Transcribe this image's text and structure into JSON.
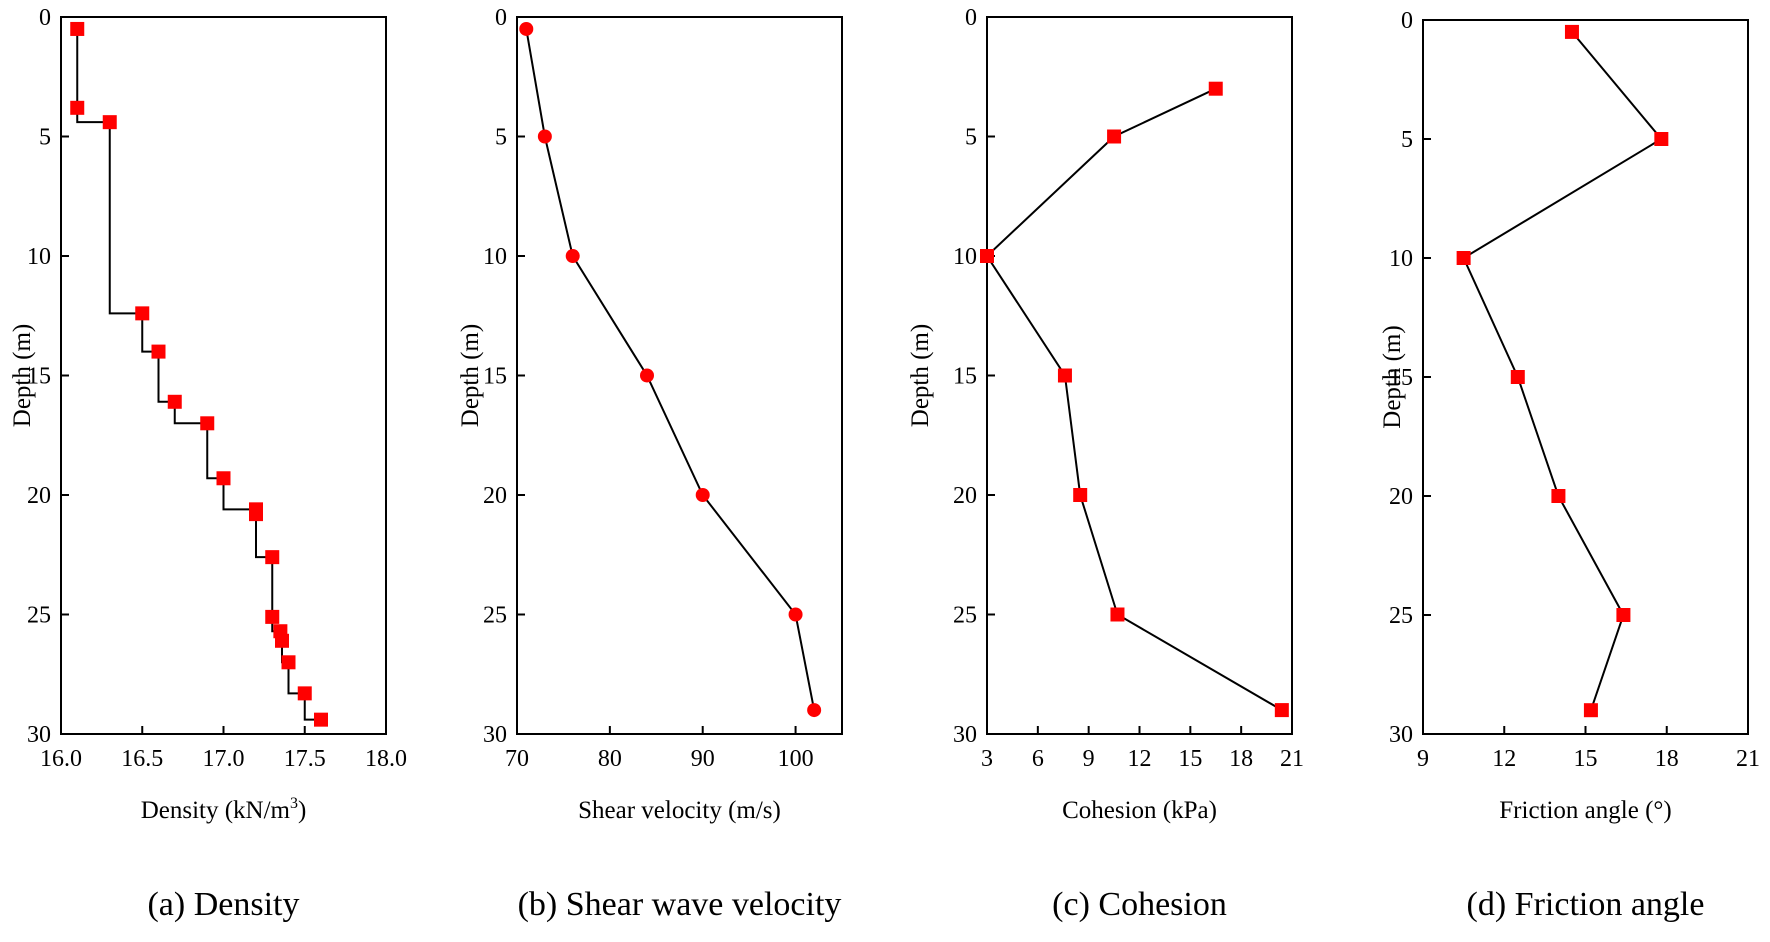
{
  "chart_data": [
    {
      "type": "line",
      "panel": "a",
      "caption": "(a) Density",
      "xlabel_main": "Density (kN/m",
      "xlabel_sup": "3",
      "xlabel_end": ")",
      "ylabel": "Depth (m)",
      "xlim": [
        16.0,
        18.0
      ],
      "ylim": [
        0,
        30
      ],
      "xticks": [
        "16.0",
        "16.5",
        "17.0",
        "17.5",
        "18.0"
      ],
      "yticks": [
        "0",
        "5",
        "10",
        "15",
        "20",
        "25",
        "30"
      ],
      "marker": "square",
      "line_style": "step",
      "series": [
        {
          "x": [
            16.1,
            16.1,
            16.3,
            16.5,
            16.6,
            16.7,
            16.9,
            17.0,
            17.2,
            17.2,
            17.3,
            17.3,
            17.35,
            17.36,
            17.4,
            17.5,
            17.6
          ],
          "y": [
            0.5,
            3.8,
            4.4,
            12.4,
            14.0,
            16.1,
            17.0,
            19.3,
            20.6,
            20.8,
            22.6,
            25.1,
            25.7,
            26.1,
            27.0,
            28.3,
            29.4
          ]
        }
      ]
    },
    {
      "type": "line",
      "panel": "b",
      "caption": "(b) Shear wave velocity",
      "xlabel_main": "Shear velocity (m/s)",
      "xlabel_sup": "",
      "xlabel_end": "",
      "ylabel": "Depth (m)",
      "xlim": [
        70,
        105
      ],
      "ylim": [
        0,
        30
      ],
      "xticks": [
        "70",
        "80",
        "90",
        "100"
      ],
      "yticks": [
        "0",
        "5",
        "10",
        "15",
        "20",
        "25",
        "30"
      ],
      "marker": "circle",
      "line_style": "straight",
      "series": [
        {
          "x": [
            71,
            73,
            76,
            84,
            90,
            100,
            102
          ],
          "y": [
            0.5,
            5,
            10,
            15,
            20,
            25,
            29
          ]
        }
      ]
    },
    {
      "type": "line",
      "panel": "c",
      "caption": "(c) Cohesion",
      "xlabel_main": "Cohesion (kPa)",
      "xlabel_sup": "",
      "xlabel_end": "",
      "ylabel": "Depth (m)",
      "xlim": [
        3,
        21
      ],
      "ylim": [
        0,
        30
      ],
      "xticks": [
        "3",
        "6",
        "9",
        "12",
        "15",
        "18",
        "21"
      ],
      "yticks": [
        "0",
        "5",
        "10",
        "15",
        "20",
        "25",
        "30"
      ],
      "marker": "square",
      "line_style": "straight",
      "series": [
        {
          "x": [
            16.5,
            10.5,
            3.0,
            7.6,
            8.5,
            10.7,
            20.4
          ],
          "y": [
            3,
            5,
            10,
            15,
            20,
            25,
            29
          ]
        }
      ]
    },
    {
      "type": "line",
      "panel": "d",
      "caption": "(d) Friction angle",
      "xlabel_main": "Friction angle (°)",
      "xlabel_sup": "",
      "xlabel_end": "",
      "ylabel": "Depth (m)",
      "xlim": [
        9,
        21
      ],
      "ylim": [
        0,
        30
      ],
      "xticks": [
        "9",
        "12",
        "15",
        "18",
        "21"
      ],
      "yticks": [
        "0",
        "5",
        "10",
        "15",
        "20",
        "25",
        "30"
      ],
      "marker": "square",
      "line_style": "straight",
      "series": [
        {
          "x": [
            14.5,
            17.8,
            10.5,
            12.5,
            14.0,
            16.4,
            15.2
          ],
          "y": [
            0.5,
            5,
            10,
            15,
            20,
            25,
            29
          ]
        }
      ]
    }
  ],
  "colors": {
    "marker": "#ff0000",
    "line": "#000000",
    "axis": "#000000"
  }
}
